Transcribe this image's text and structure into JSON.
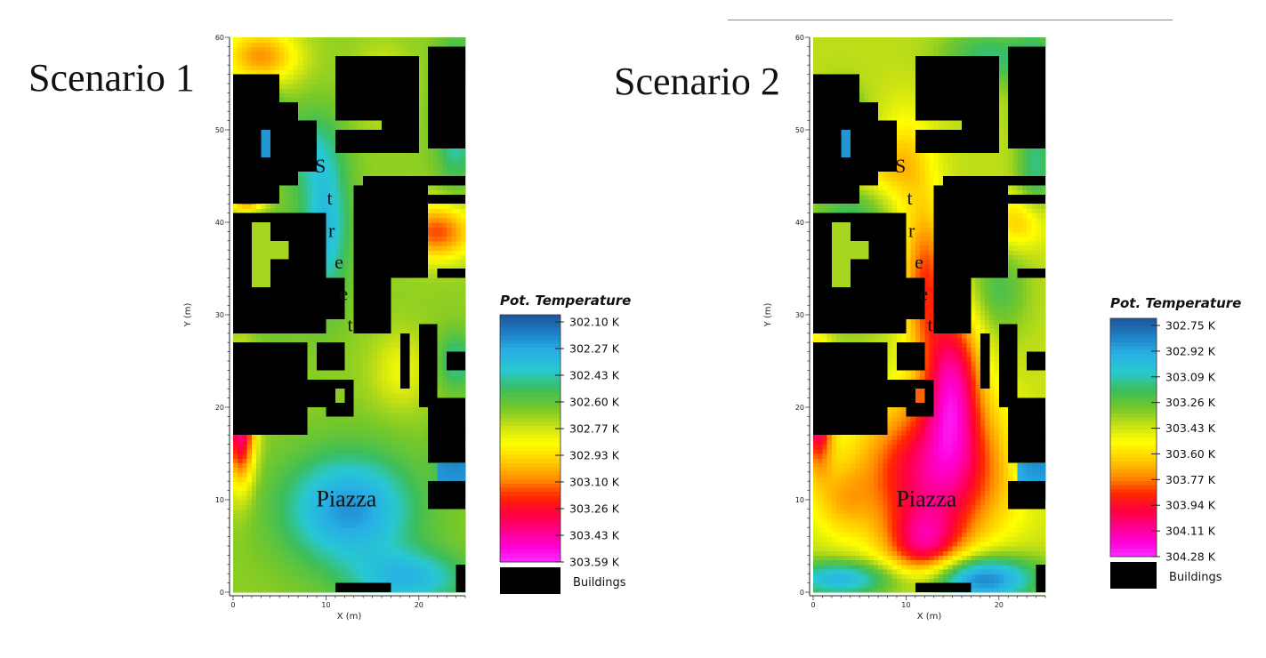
{
  "figure": {
    "colors": {
      "building": "#000000",
      "street_label": "#111111",
      "axis": "#222222",
      "title": "#111111"
    }
  },
  "chart_data": [
    {
      "type": "heatmap",
      "title": "Scenario 1",
      "xlabel": "X (m)",
      "ylabel": "Y (m)",
      "xlim": [
        0,
        25
      ],
      "ylim": [
        0,
        60
      ],
      "x_ticks": [
        "0",
        "10",
        "20"
      ],
      "y_ticks": [
        "0",
        "10",
        "20",
        "30",
        "40",
        "50",
        "60"
      ],
      "grid": false,
      "legend": {
        "title": "Pot. Temperature",
        "position": "right",
        "tick_labels": [
          "302.10 K",
          "302.27 K",
          "302.43 K",
          "302.60 K",
          "302.77 K",
          "302.93 K",
          "303.10 K",
          "303.26 K",
          "303.43 K",
          "303.59 K"
        ],
        "buildings_label": "Buildings"
      },
      "annotations": {
        "street": "Street",
        "piazza": "Piazza"
      },
      "value_range_K": [
        302.02,
        303.59
      ],
      "field_description": "Relatively cool field; coolest (blue) in the piazza and along the street canyon, warmer (yellow-red) pockets in the north-west corner, east courtyard and near the south-west wall."
    },
    {
      "type": "heatmap",
      "title": "Scenario 2",
      "xlabel": "X (m)",
      "ylabel": "Y (m)",
      "xlim": [
        0,
        25
      ],
      "ylim": [
        0,
        60
      ],
      "x_ticks": [
        "0",
        "10",
        "20"
      ],
      "y_ticks": [
        "0",
        "10",
        "20",
        "30",
        "40",
        "50",
        "60"
      ],
      "grid": false,
      "legend": {
        "title": "Pot. Temperature",
        "position": "right",
        "tick_labels": [
          "302.75 K",
          "302.92 K",
          "303.09 K",
          "303.26 K",
          "303.43 K",
          "303.60 K",
          "303.77 K",
          "303.94 K",
          "304.11 K",
          "304.28 K"
        ],
        "buildings_label": "Buildings"
      },
      "annotations": {
        "street": "Street",
        "piazza": "Piazza"
      },
      "value_range_K": [
        302.66,
        304.28
      ],
      "field_description": "Warmer field; hot (red-magenta) core along the lower street and across the piazza, green courtyards, blue edges at the bottom and east side."
    }
  ]
}
